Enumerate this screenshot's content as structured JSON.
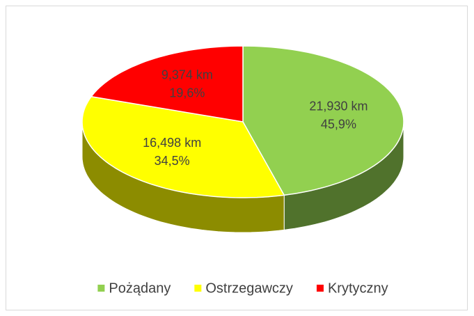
{
  "chart_data": {
    "type": "pie3d",
    "categories": [
      "Pożądany",
      "Ostrzegawczy",
      "Krytyczny"
    ],
    "values": [
      21.93,
      16.498,
      9.374
    ],
    "value_labels": [
      "21,930 km",
      "16,498 km",
      "9,374 km"
    ],
    "percent_labels": [
      "45,9%",
      "34,5%",
      "19,6%"
    ],
    "colors": [
      "#92d050",
      "#ffff00",
      "#ff0000"
    ],
    "legend": "bottom"
  }
}
